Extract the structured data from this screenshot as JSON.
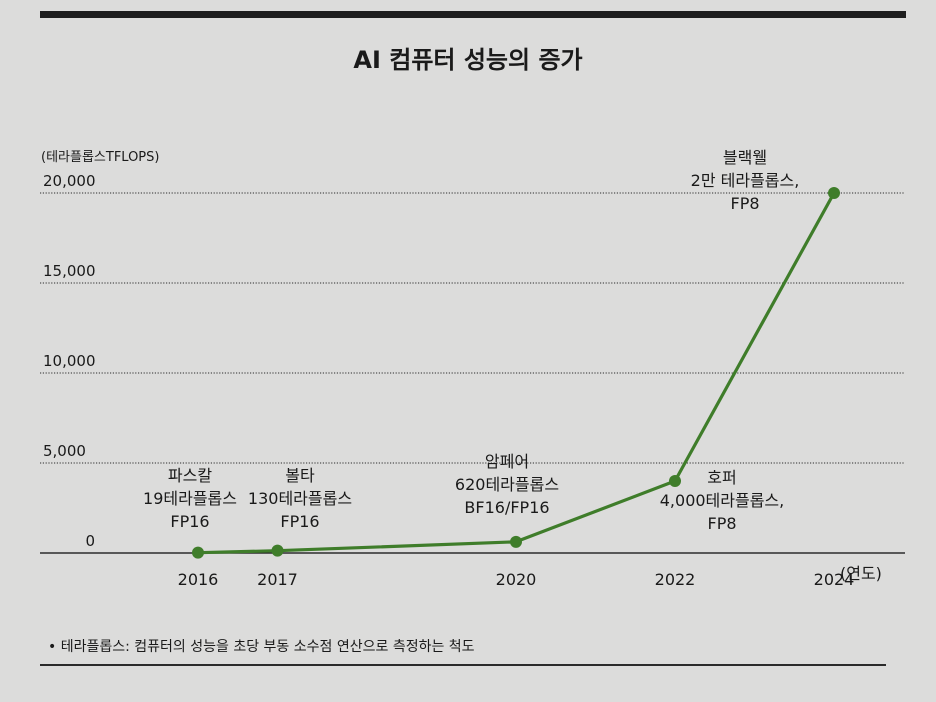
{
  "chart_data": {
    "type": "line",
    "title": "AI 컴퓨터 성능의 증가",
    "ylabel": "(테라플롭스TFLOPS)",
    "xlabel": "(연도)",
    "ylim": [
      0,
      20000
    ],
    "yticks": [
      0,
      5000,
      10000,
      15000,
      20000
    ],
    "ytick_labels": [
      "0",
      "5,000",
      "10,000",
      "15,000",
      "20,000"
    ],
    "xlim": [
      2014,
      2024.6
    ],
    "xticks": [
      2016,
      2017,
      2020,
      2022,
      2024
    ],
    "grid": true,
    "series": [
      {
        "name": "AI 컴퓨터 성능",
        "color": "#3f7d2a",
        "points": [
          {
            "x": 2016,
            "y": 19,
            "label_lines": [
              "파스칼",
              "19테라플롭스",
              "FP16"
            ],
            "label_pos": "above-left"
          },
          {
            "x": 2017,
            "y": 130,
            "label_lines": [
              "볼타",
              "130테라플롭스",
              "FP16"
            ],
            "label_pos": "above"
          },
          {
            "x": 2020,
            "y": 620,
            "label_lines": [
              "암페어",
              "620테라플롭스",
              "BF16/FP16"
            ],
            "label_pos": "above"
          },
          {
            "x": 2022,
            "y": 4000,
            "label_lines": [
              "호퍼",
              "4,000테라플롭스,",
              "FP8"
            ],
            "label_pos": "right"
          },
          {
            "x": 2024,
            "y": 20000,
            "label_lines": [
              "블랙웰",
              "2만 테라플롭스,",
              "FP8"
            ],
            "label_pos": "above-left"
          }
        ]
      }
    ]
  },
  "footnote": "• 테라플롭스: 컴퓨터의 성능을 초당 부동 소수점 연산으로 측정하는 척도"
}
